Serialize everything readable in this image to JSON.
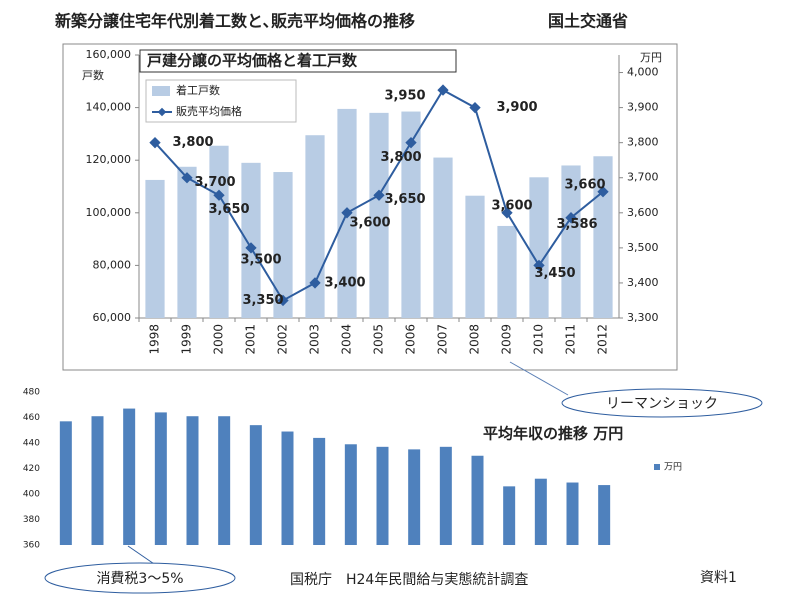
{
  "page_title": "新築分譲住宅年代別着工数と､販売平均価格の推移",
  "page_source": "国土交通省",
  "chart_data": [
    {
      "type": "bar_line",
      "title": "戸建分譲の平均価格と着工戸数",
      "y_label": "戸数",
      "y2_label": "万円",
      "categories": [
        "1998",
        "1999",
        "2000",
        "2001",
        "2002",
        "2003",
        "2004",
        "2005",
        "2006",
        "2007",
        "2008",
        "2009",
        "2010",
        "2011",
        "2012"
      ],
      "series": [
        {
          "name": "着工戸数",
          "type": "bar",
          "color": "#b8cce4",
          "values": [
            112500,
            117500,
            125500,
            119000,
            115500,
            129500,
            139500,
            138000,
            138500,
            121000,
            106500,
            95000,
            113500,
            118000,
            121500
          ]
        },
        {
          "name": "販売平均価格",
          "type": "line",
          "axis": "y2",
          "color": "#2e5d9f",
          "values": [
            3800,
            3700,
            3650,
            3500,
            3350,
            3400,
            3600,
            3650,
            3800,
            3950,
            3900,
            3600,
            3450,
            3586,
            3660
          ],
          "value_labels": [
            "3,800",
            "3,700",
            "3,650",
            "3,500",
            "3,350",
            "3,400",
            "3,600",
            "3,650",
            "3,800",
            "3,950",
            "3,900",
            "3,600",
            "3,450",
            "3,586",
            "3,660"
          ]
        }
      ],
      "ylim": [
        60000,
        160000
      ],
      "yticks": [
        {
          "value": 60000,
          "label": "60,000"
        },
        {
          "value": 80000,
          "label": "80,000"
        },
        {
          "value": 100000,
          "label": "100,000"
        },
        {
          "value": 120000,
          "label": "120,000"
        },
        {
          "value": 140000,
          "label": "140,000"
        },
        {
          "value": 160000,
          "label": "160,000"
        }
      ],
      "y2lim": [
        3300,
        4050
      ],
      "y2ticks": [
        {
          "value": 3300,
          "label": "3,300"
        },
        {
          "value": 3400,
          "label": "3,400"
        },
        {
          "value": 3500,
          "label": "3,500"
        },
        {
          "value": 3600,
          "label": "3,600"
        },
        {
          "value": 3700,
          "label": "3,700"
        },
        {
          "value": 3800,
          "label": "3,800"
        },
        {
          "value": 3900,
          "label": "3,900"
        },
        {
          "value": 4000,
          "label": "4,000"
        }
      ],
      "legend": "upper left",
      "annotation": "リーマンショック"
    },
    {
      "type": "bar",
      "title": "平均年収の推移 万円",
      "categories": [
        null,
        null,
        null,
        null,
        null,
        null,
        null,
        null,
        null,
        null,
        null,
        null,
        null,
        null,
        null,
        null,
        null,
        null
      ],
      "series": [
        {
          "name": "万円",
          "color": "#4f81bd",
          "values": [
            457,
            461,
            467,
            464,
            461,
            461,
            454,
            449,
            444,
            439,
            437,
            435,
            437,
            430,
            406,
            412,
            409,
            407
          ]
        }
      ],
      "ylim": [
        360,
        480
      ],
      "yticks": [
        360,
        380,
        400,
        420,
        440,
        460,
        480
      ],
      "legend": "right",
      "annotation": "消費税3～5%"
    }
  ],
  "notes": [
    "国税庁　H24年民間給与実態統計調査",
    "資料1"
  ]
}
